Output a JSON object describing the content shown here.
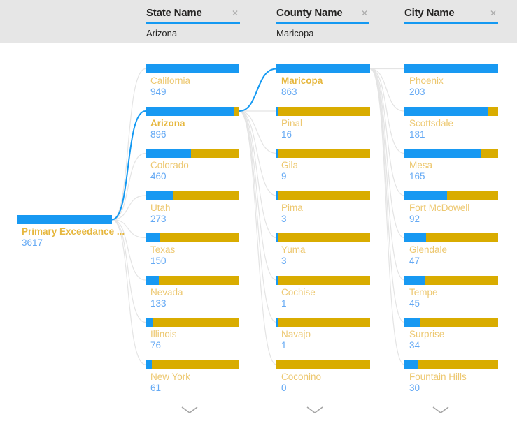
{
  "filters": [
    {
      "label": "State Name",
      "value": "Arizona"
    },
    {
      "label": "County Name",
      "value": "Maricopa"
    },
    {
      "label": "City Name",
      "value": ""
    }
  ],
  "icons": {
    "close": "✕",
    "expand": "chevron-down"
  },
  "chart_data": {
    "type": "decomposition-tree",
    "title": "Primary Exceedance ...",
    "root": {
      "label": "Primary Exceedance ...",
      "value": 3617
    },
    "bar_rule": "blue fill width = value / max value in column; remainder gold",
    "levels": [
      {
        "field": "State Name",
        "selected": "Arizona",
        "nodes": [
          {
            "label": "California",
            "value": 949
          },
          {
            "label": "Arizona",
            "value": 896
          },
          {
            "label": "Colorado",
            "value": 460
          },
          {
            "label": "Utah",
            "value": 273
          },
          {
            "label": "Texas",
            "value": 150
          },
          {
            "label": "Nevada",
            "value": 133
          },
          {
            "label": "Illinois",
            "value": 76
          },
          {
            "label": "New York",
            "value": 61
          }
        ]
      },
      {
        "field": "County Name",
        "selected": "Maricopa",
        "nodes": [
          {
            "label": "Maricopa",
            "value": 863
          },
          {
            "label": "Pinal",
            "value": 16
          },
          {
            "label": "Gila",
            "value": 9
          },
          {
            "label": "Pima",
            "value": 3
          },
          {
            "label": "Yuma",
            "value": 3
          },
          {
            "label": "Cochise",
            "value": 1
          },
          {
            "label": "Navajo",
            "value": 1
          },
          {
            "label": "Coconino",
            "value": 0
          }
        ]
      },
      {
        "field": "City Name",
        "selected": null,
        "nodes": [
          {
            "label": "Phoenix",
            "value": 203
          },
          {
            "label": "Scottsdale",
            "value": 181
          },
          {
            "label": "Mesa",
            "value": 165
          },
          {
            "label": "Fort McDowell",
            "value": 92
          },
          {
            "label": "Glendale",
            "value": 47
          },
          {
            "label": "Tempe",
            "value": 45
          },
          {
            "label": "Surprise",
            "value": 34
          },
          {
            "label": "Fountain Hills",
            "value": 30
          }
        ]
      }
    ]
  },
  "colors": {
    "bar_blue": "#1899F2",
    "bar_gold": "#D9AC00",
    "label_gold": "#EDC871",
    "label_selected_gold": "#E6B73E",
    "value_blue": "#64A9F4",
    "accent_underline": "#1499F2",
    "connector_gray": "#E4E4E4",
    "connector_blue": "#1499F2",
    "header_bg": "#E6E6E6",
    "header_text": "#252423",
    "chevron_gray": "#A6A6A6"
  }
}
